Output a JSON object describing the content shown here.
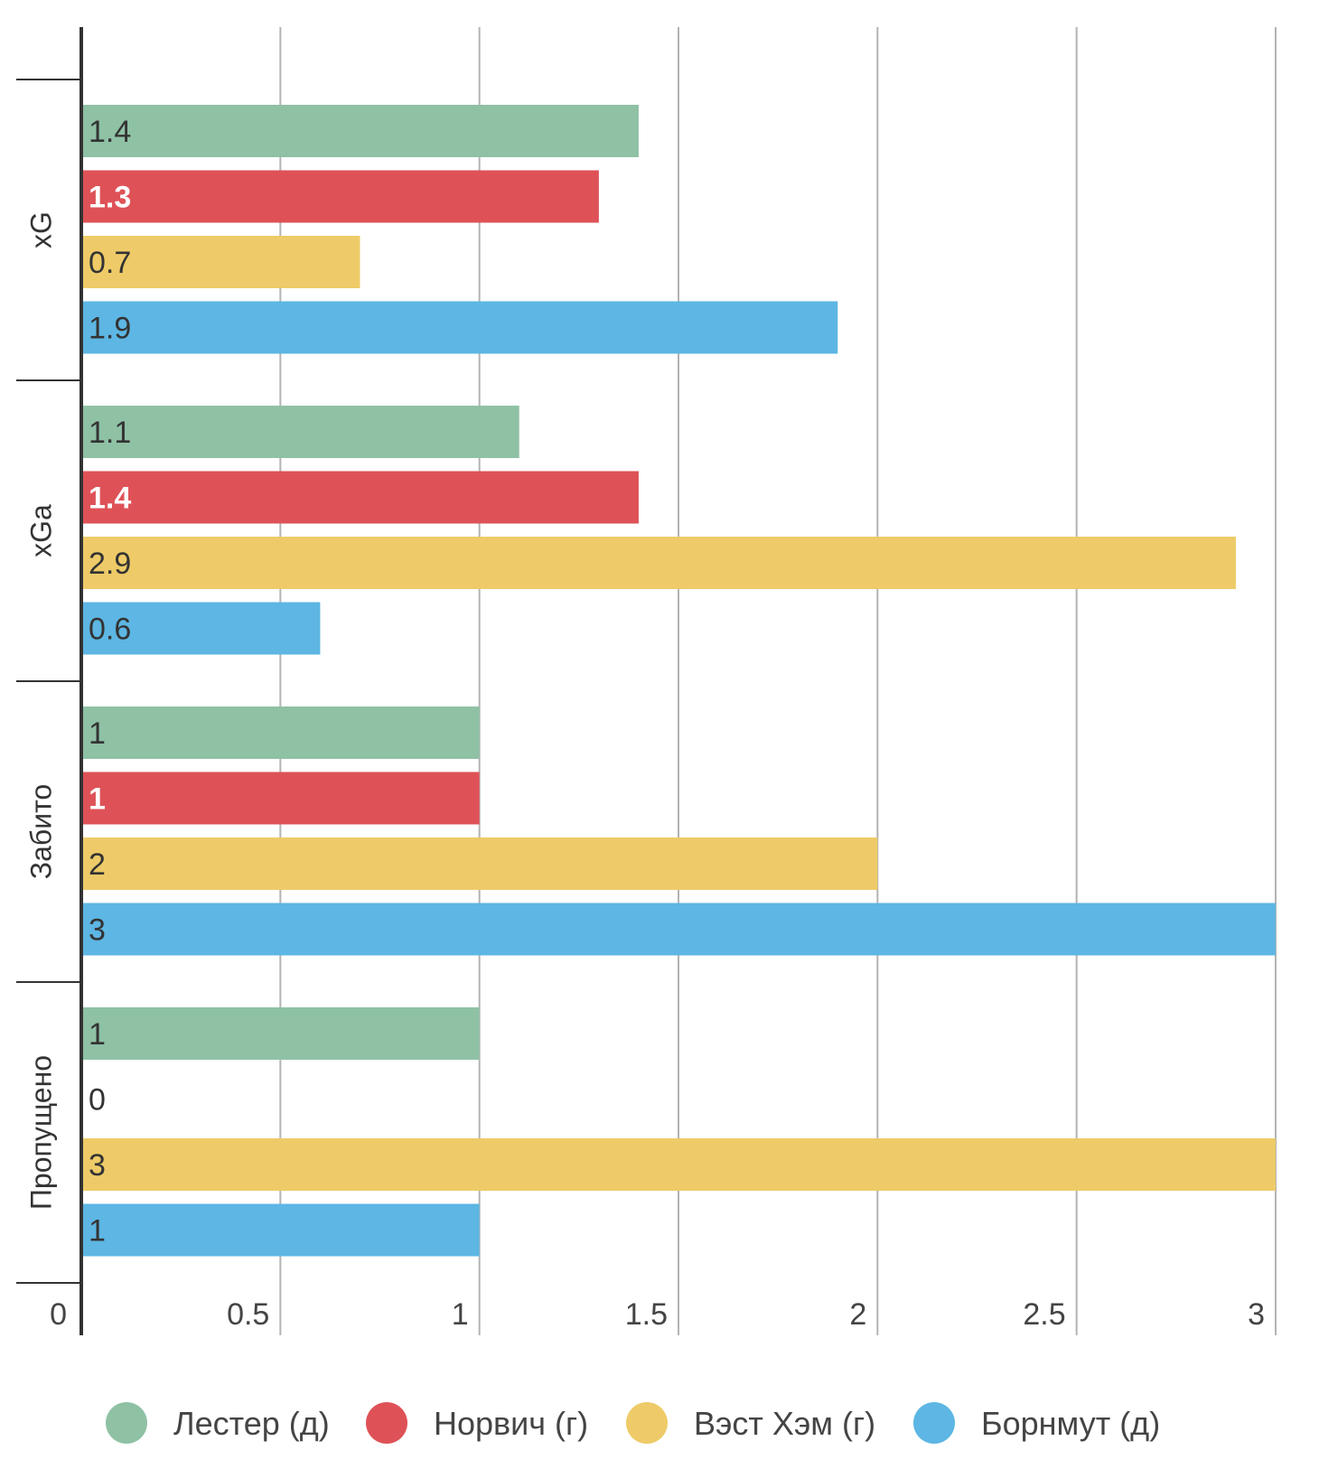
{
  "chart_data": {
    "type": "bar",
    "orientation": "horizontal",
    "title": "",
    "xlabel": "",
    "ylabel": "",
    "xlim": [
      0,
      3
    ],
    "xticks": [
      "0",
      "0.5",
      "1",
      "1.5",
      "2",
      "2.5",
      "3"
    ],
    "grid": true,
    "legend_position": "bottom",
    "categories": [
      "xG",
      "xGa",
      "Забито",
      "Пропущено"
    ],
    "series": [
      {
        "name": "Лестер (д)",
        "color": "#8fc1a5",
        "label_color": "#333333",
        "values": [
          1.4,
          1.1,
          1,
          1
        ]
      },
      {
        "name": "Норвич (г)",
        "color": "#de5257",
        "label_color": "#ffffff",
        "values": [
          1.3,
          1.4,
          1,
          0
        ]
      },
      {
        "name": "Вэст Хэм (г)",
        "color": "#eecb68",
        "label_color": "#333333",
        "values": [
          0.7,
          2.9,
          2,
          3
        ]
      },
      {
        "name": "Борнмут (д)",
        "color": "#5db6e3",
        "label_color": "#333333",
        "values": [
          1.9,
          0.6,
          3,
          1
        ]
      }
    ],
    "data_labels": [
      [
        "1.4",
        "1.3",
        "0.7",
        "1.9"
      ],
      [
        "1.1",
        "1.4",
        "2.9",
        "0.6"
      ],
      [
        "1",
        "1",
        "2",
        "3"
      ],
      [
        "1",
        "0",
        "3",
        "1"
      ]
    ]
  }
}
